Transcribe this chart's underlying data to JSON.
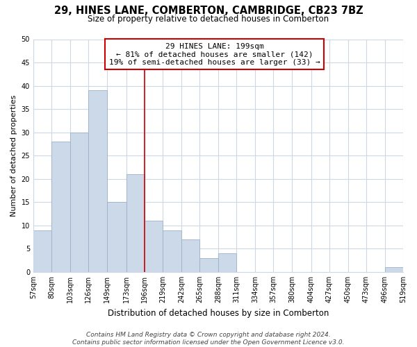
{
  "title": "29, HINES LANE, COMBERTON, CAMBRIDGE, CB23 7BZ",
  "subtitle": "Size of property relative to detached houses in Comberton",
  "xlabel": "Distribution of detached houses by size in Comberton",
  "ylabel": "Number of detached properties",
  "bin_edges": [
    57,
    80,
    103,
    126,
    149,
    173,
    196,
    219,
    242,
    265,
    288,
    311,
    334,
    357,
    380,
    404,
    427,
    450,
    473,
    496,
    519
  ],
  "bin_labels": [
    "57sqm",
    "80sqm",
    "103sqm",
    "126sqm",
    "149sqm",
    "173sqm",
    "196sqm",
    "219sqm",
    "242sqm",
    "265sqm",
    "288sqm",
    "311sqm",
    "334sqm",
    "357sqm",
    "380sqm",
    "404sqm",
    "427sqm",
    "450sqm",
    "473sqm",
    "496sqm",
    "519sqm"
  ],
  "counts": [
    9,
    28,
    30,
    39,
    15,
    21,
    11,
    9,
    7,
    3,
    4,
    0,
    0,
    0,
    0,
    0,
    0,
    0,
    0,
    1
  ],
  "bar_color": "#ccd9e8",
  "bar_edge_color": "#9ab0c8",
  "vline_x": 196,
  "vline_color": "#cc0000",
  "annotation_line1": "29 HINES LANE: 199sqm",
  "annotation_line2": "← 81% of detached houses are smaller (142)",
  "annotation_line3": "19% of semi-detached houses are larger (33) →",
  "annotation_box_color": "#ffffff",
  "annotation_box_edge_color": "#cc0000",
  "ylim": [
    0,
    50
  ],
  "yticks": [
    0,
    5,
    10,
    15,
    20,
    25,
    30,
    35,
    40,
    45,
    50
  ],
  "footer_line1": "Contains HM Land Registry data © Crown copyright and database right 2024.",
  "footer_line2": "Contains public sector information licensed under the Open Government Licence v3.0.",
  "bg_color": "#ffffff",
  "grid_color": "#ccd8e4",
  "title_fontsize": 10.5,
  "subtitle_fontsize": 8.5,
  "ylabel_fontsize": 8,
  "xlabel_fontsize": 8.5,
  "tick_fontsize": 7,
  "footer_fontsize": 6.5
}
